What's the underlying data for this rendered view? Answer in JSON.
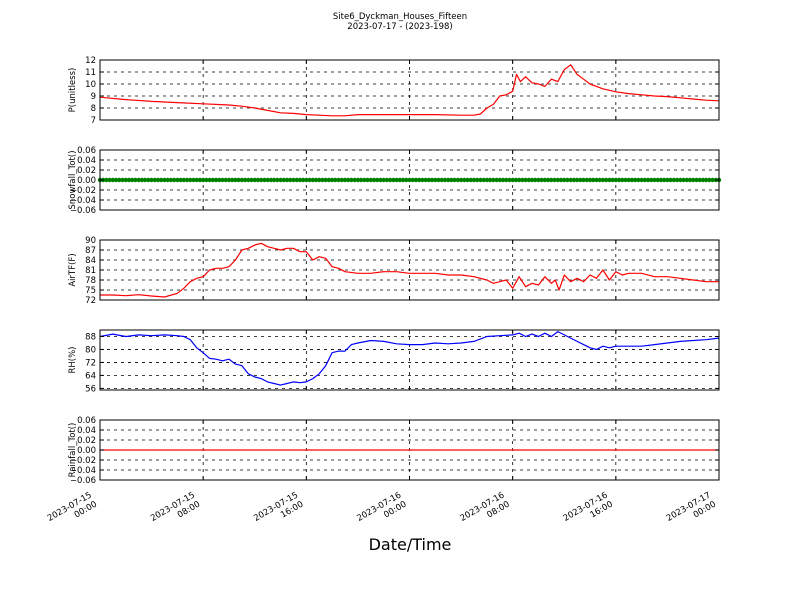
{
  "title": {
    "line1": "Site6_Dyckman_Houses_Fifteen",
    "line2": "2023-07-17 - (2023-198)"
  },
  "xlabel": "Date/Time",
  "x_ticks": [
    {
      "t": 0,
      "l1": "2023-07-15",
      "l2": "00:00"
    },
    {
      "t": 8,
      "l1": "2023-07-15",
      "l2": "08:00"
    },
    {
      "t": 16,
      "l1": "2023-07-15",
      "l2": "16:00"
    },
    {
      "t": 24,
      "l1": "2023-07-16",
      "l2": "00:00"
    },
    {
      "t": 32,
      "l1": "2023-07-16",
      "l2": "08:00"
    },
    {
      "t": 40,
      "l1": "2023-07-16",
      "l2": "16:00"
    },
    {
      "t": 48,
      "l1": "2023-07-17",
      "l2": "00:00"
    }
  ],
  "chart_data": [
    {
      "type": "line",
      "ylabel": "P(unitless)",
      "ylim": [
        7,
        12
      ],
      "yticks": [
        7,
        8,
        9,
        10,
        11,
        12
      ],
      "ytick_labels": [
        "7",
        "8",
        "9",
        "10",
        "11",
        "12"
      ],
      "grid": true,
      "color": "#ff0000",
      "x_unit": "hours from 2023-07-15 00:00",
      "x": [
        0,
        2,
        4,
        6,
        8,
        10,
        11,
        12,
        13,
        14,
        15,
        16,
        17,
        18,
        19,
        20,
        22,
        24,
        26,
        28,
        29,
        29.5,
        30,
        30.5,
        31,
        31.5,
        32,
        32.3,
        32.6,
        33,
        33.5,
        34,
        34.5,
        35,
        35.5,
        36,
        36.5,
        37,
        37.5,
        38,
        38.5,
        39,
        40,
        41,
        42,
        43,
        44,
        45,
        46,
        47,
        48
      ],
      "y": [
        8.9,
        8.7,
        8.55,
        8.45,
        8.35,
        8.25,
        8.15,
        8.0,
        7.8,
        7.6,
        7.55,
        7.45,
        7.4,
        7.35,
        7.35,
        7.45,
        7.45,
        7.45,
        7.45,
        7.4,
        7.4,
        7.5,
        8.0,
        8.3,
        9.0,
        9.1,
        9.4,
        10.8,
        10.2,
        10.6,
        10.1,
        10.0,
        9.8,
        10.4,
        10.2,
        11.2,
        11.6,
        10.8,
        10.4,
        10.0,
        9.8,
        9.6,
        9.35,
        9.2,
        9.1,
        9.0,
        8.95,
        8.85,
        8.75,
        8.65,
        8.6
      ]
    },
    {
      "type": "line",
      "ylabel": "Snowfall_Tot()",
      "ylim": [
        -0.06,
        0.06
      ],
      "yticks": [
        -0.06,
        -0.04,
        -0.02,
        0.0,
        0.02,
        0.04,
        0.06
      ],
      "ytick_labels": [
        "−0.06",
        "−0.04",
        "−0.02",
        "0.00",
        "0.02",
        "0.04",
        "0.06"
      ],
      "grid": true,
      "color": "#008000",
      "markers": true,
      "x": [
        0,
        48
      ],
      "y": [
        0,
        0
      ]
    },
    {
      "type": "line",
      "ylabel": "AirTF(F)",
      "ylim": [
        72,
        90
      ],
      "yticks": [
        72,
        75,
        78,
        81,
        84,
        87,
        90
      ],
      "ytick_labels": [
        "72",
        "75",
        "78",
        "81",
        "84",
        "87",
        "90"
      ],
      "grid": true,
      "color": "#ff0000",
      "x": [
        0,
        1,
        2,
        3,
        4,
        5,
        6,
        6.5,
        7,
        7.5,
        8,
        8.5,
        9,
        9.5,
        10,
        10.5,
        11,
        11.5,
        12,
        12.5,
        13,
        13.5,
        14,
        14.5,
        15,
        15.5,
        16,
        16.5,
        17,
        17.5,
        18,
        18.5,
        19,
        20,
        21,
        22,
        23,
        24,
        25,
        26,
        27,
        28,
        29,
        30,
        30.5,
        31,
        31.5,
        32,
        32.5,
        33,
        33.5,
        34,
        34.5,
        35,
        35.3,
        35.6,
        36,
        36.5,
        37,
        37.5,
        38,
        38.5,
        39,
        39.5,
        40,
        40.5,
        41,
        42,
        43,
        44,
        45,
        46,
        47,
        48
      ],
      "y": [
        73.5,
        73.5,
        73.3,
        73.6,
        73.2,
        72.9,
        74,
        75.5,
        77.5,
        78.5,
        79,
        81,
        81.5,
        81.5,
        82,
        84,
        87,
        87.5,
        88.5,
        89,
        88,
        87.5,
        87,
        87.5,
        87.5,
        86.5,
        86.5,
        84,
        85,
        84.5,
        82,
        81.5,
        80.5,
        80,
        80,
        80.5,
        80.5,
        80,
        80,
        80,
        79.5,
        79.5,
        79,
        78,
        77,
        77.5,
        78,
        75.5,
        79,
        76,
        77,
        76.5,
        79,
        77,
        78,
        75,
        79.5,
        77.5,
        78.5,
        77.5,
        79.5,
        78.5,
        81,
        78,
        80.5,
        79.5,
        80,
        80,
        79,
        79,
        78.5,
        78,
        77.5,
        77.5
      ]
    },
    {
      "type": "line",
      "ylabel": "RH(%)",
      "ylim": [
        55,
        92
      ],
      "yticks": [
        56,
        64,
        72,
        80,
        88
      ],
      "ytick_labels": [
        "56",
        "64",
        "72",
        "80",
        "88"
      ],
      "grid": true,
      "color": "#0000ff",
      "x": [
        0,
        1,
        2,
        3,
        4,
        5,
        6,
        6.5,
        7,
        7.5,
        8,
        8.5,
        9,
        9.5,
        10,
        10.5,
        11,
        11.5,
        12,
        12.5,
        13,
        13.5,
        14,
        14.5,
        15,
        15.5,
        16,
        16.5,
        17,
        17.5,
        18,
        18.5,
        19,
        19.5,
        20,
        21,
        22,
        23,
        24,
        25,
        26,
        27,
        28,
        29,
        30,
        31,
        32,
        32.5,
        33,
        33.5,
        34,
        34.5,
        35,
        35.5,
        36,
        36.5,
        37,
        37.5,
        38,
        38.5,
        39,
        39.5,
        40,
        41,
        42,
        43,
        44,
        45,
        46,
        47,
        48
      ],
      "y": [
        88,
        89.5,
        88,
        89,
        88.5,
        89,
        88.5,
        88,
        86,
        81,
        78,
        74.5,
        74,
        73,
        74,
        71,
        70,
        65,
        63,
        62,
        60,
        59,
        58,
        59,
        60,
        59.5,
        60,
        62,
        65,
        70,
        78,
        79,
        79,
        83,
        84,
        85.5,
        85,
        83.5,
        83,
        83,
        84,
        83.5,
        84,
        85,
        88,
        88.5,
        89,
        90,
        88,
        89.5,
        88,
        90,
        88,
        91,
        89,
        87,
        85,
        83,
        81,
        80,
        82,
        81,
        82,
        82,
        82,
        83,
        84,
        85,
        85.5,
        86,
        87
      ]
    },
    {
      "type": "line",
      "ylabel": "Rainfall_Tot()",
      "ylim": [
        -0.06,
        0.06
      ],
      "yticks": [
        -0.06,
        -0.04,
        -0.02,
        0.0,
        0.02,
        0.04,
        0.06
      ],
      "ytick_labels": [
        "−0.06",
        "−0.04",
        "−0.02",
        "0.00",
        "0.02",
        "0.04",
        "0.06"
      ],
      "grid": true,
      "color": "#ff0000",
      "x": [
        0,
        48
      ],
      "y": [
        0,
        0
      ]
    }
  ]
}
